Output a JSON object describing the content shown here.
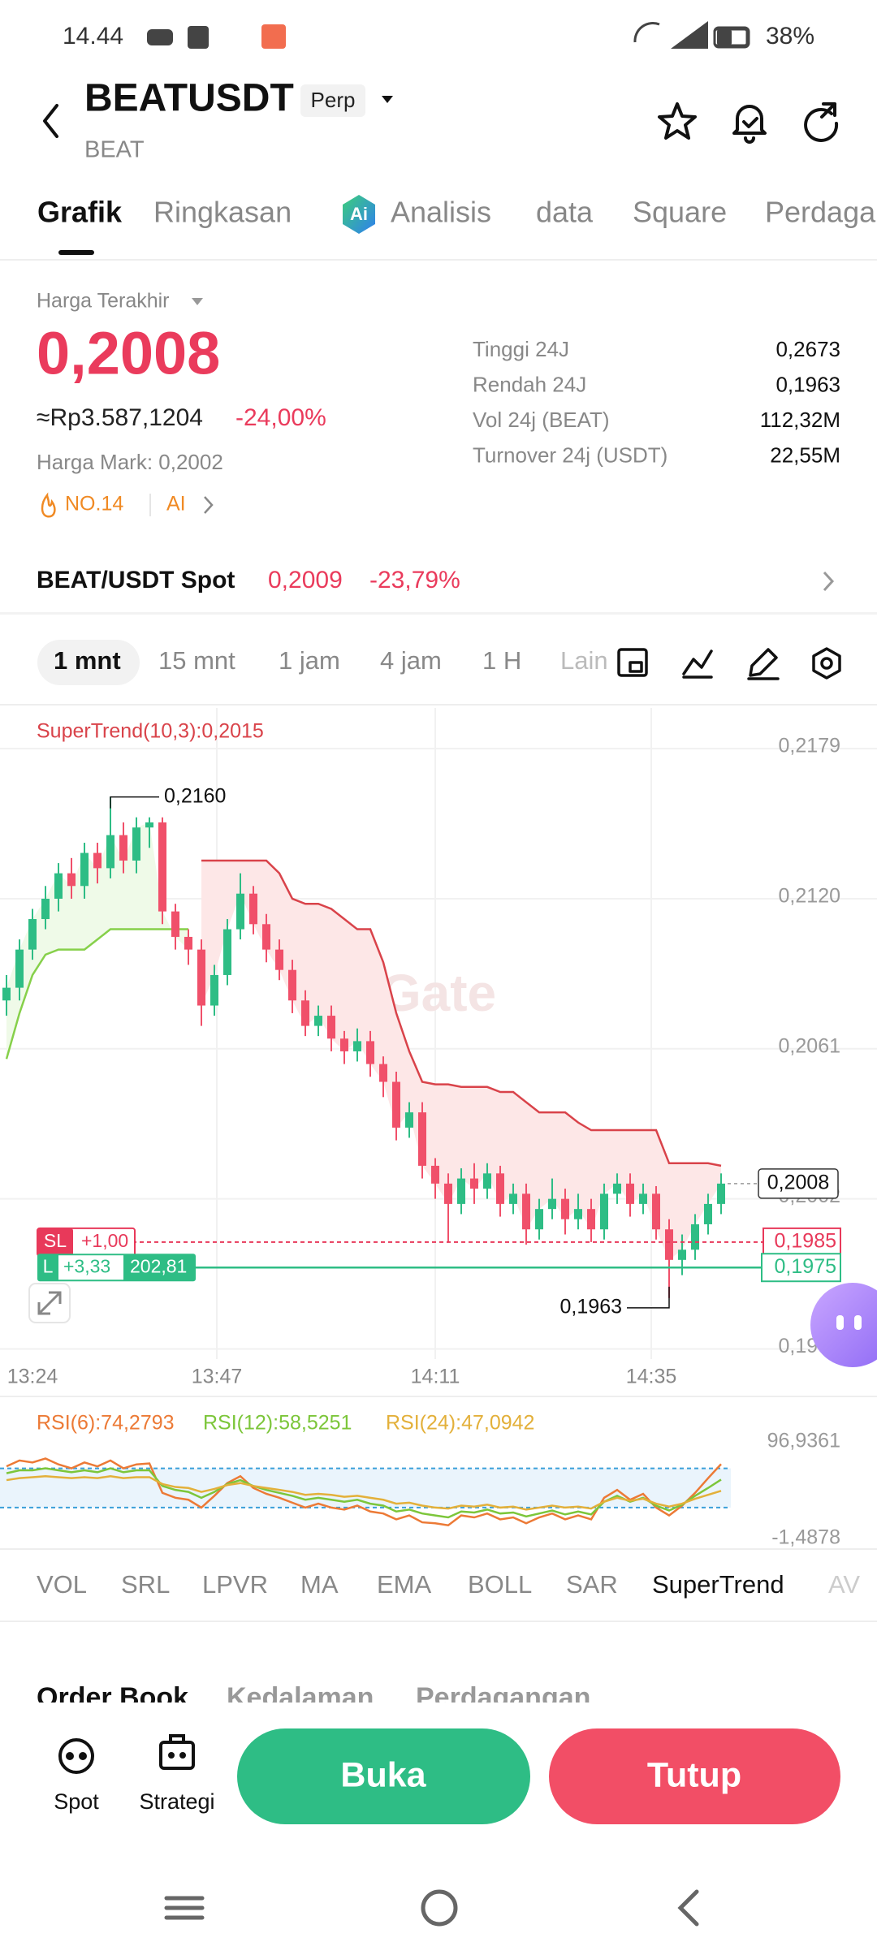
{
  "status_bar": {
    "time": "14.44",
    "battery": "38%"
  },
  "header": {
    "symbol": "BEATUSDT",
    "badge": "Perp",
    "base": "BEAT"
  },
  "tabs": [
    "Grafik",
    "Ringkasan",
    "Analisis",
    "data",
    "Square",
    "Perdaga"
  ],
  "ticker": {
    "label": "Harga Terakhir",
    "price": "0,2008",
    "idr": "≈Rp3.587,1204",
    "change": "-24,00%",
    "mark": "Harga Mark: 0,2002",
    "rank": "NO.14",
    "ai": "AI",
    "stats": [
      {
        "label": "Tinggi 24J",
        "value": "0,2673"
      },
      {
        "label": "Rendah 24J",
        "value": "0,1963"
      },
      {
        "label": "Vol 24j (BEAT)",
        "value": "112,32M"
      },
      {
        "label": "Turnover 24j (USDT)",
        "value": "22,55M"
      }
    ]
  },
  "spot": {
    "pair": "BEAT/USDT Spot",
    "price": "0,2009",
    "change": "-23,79%"
  },
  "intervals": [
    "1 mnt",
    "15 mnt",
    "1 jam",
    "4 jam",
    "1 H",
    "Lain"
  ],
  "chart": {
    "type": "candlestick",
    "indicator_label": "SuperTrend(10,3):0,2015",
    "watermark": "Gate",
    "up_color": "#2ebd85",
    "down_color": "#f0506a",
    "open": [
      0.208,
      0.2085,
      0.21,
      0.2112,
      0.212,
      0.213,
      0.2125,
      0.2138,
      0.2132,
      0.2145,
      0.2135,
      0.2148,
      0.215,
      0.2115,
      0.2105,
      0.21,
      0.2078,
      0.209,
      0.2108,
      0.2122,
      0.211,
      0.21,
      0.2092,
      0.208,
      0.207,
      0.2074,
      0.2065,
      0.206,
      0.2064,
      0.2055,
      0.2048,
      0.203,
      0.2036,
      0.2015,
      0.2008,
      0.2,
      0.201,
      0.2006,
      0.2012,
      0.2,
      0.2004,
      0.199,
      0.1998,
      0.2002,
      0.1994,
      0.1998,
      0.199,
      0.2004,
      0.2008,
      0.2,
      0.2004,
      0.199,
      0.1978,
      0.1982,
      0.1992,
      0.2
    ],
    "high": [
      0.209,
      0.2104,
      0.2116,
      0.2125,
      0.2134,
      0.2136,
      0.2142,
      0.2142,
      0.216,
      0.215,
      0.2152,
      0.2152,
      0.2152,
      0.2118,
      0.2108,
      0.2104,
      0.2094,
      0.2112,
      0.213,
      0.2125,
      0.2114,
      0.2104,
      0.2096,
      0.2084,
      0.2078,
      0.2078,
      0.2068,
      0.2069,
      0.2068,
      0.2058,
      0.2052,
      0.204,
      0.204,
      0.2018,
      0.2012,
      0.2014,
      0.2016,
      0.2016,
      0.2015,
      0.2008,
      0.2008,
      0.2002,
      0.201,
      0.2006,
      0.2004,
      0.2002,
      0.2008,
      0.2012,
      0.2012,
      0.2008,
      0.2007,
      0.1994,
      0.1988,
      0.1996,
      0.2004,
      0.2012
    ],
    "low": [
      0.2074,
      0.208,
      0.2096,
      0.2108,
      0.2115,
      0.212,
      0.212,
      0.2126,
      0.2128,
      0.213,
      0.213,
      0.214,
      0.211,
      0.21,
      0.2094,
      0.207,
      0.2074,
      0.2086,
      0.2104,
      0.2106,
      0.2095,
      0.2088,
      0.2075,
      0.2066,
      0.2066,
      0.206,
      0.2055,
      0.2056,
      0.205,
      0.2042,
      0.2025,
      0.2026,
      0.201,
      0.2002,
      0.1985,
      0.1996,
      0.2,
      0.2002,
      0.1995,
      0.1996,
      0.1984,
      0.1986,
      0.1994,
      0.1988,
      0.199,
      0.1985,
      0.1986,
      0.2,
      0.1995,
      0.1996,
      0.1986,
      0.1963,
      0.1972,
      0.1978,
      0.1988,
      0.1996
    ],
    "close": [
      0.2085,
      0.21,
      0.2112,
      0.212,
      0.213,
      0.2125,
      0.2138,
      0.2132,
      0.2145,
      0.2135,
      0.2148,
      0.215,
      0.2115,
      0.2105,
      0.21,
      0.2078,
      0.209,
      0.2108,
      0.2122,
      0.211,
      0.21,
      0.2092,
      0.208,
      0.207,
      0.2074,
      0.2065,
      0.206,
      0.2064,
      0.2055,
      0.2048,
      0.203,
      0.2036,
      0.2015,
      0.2008,
      0.2,
      0.201,
      0.2006,
      0.2012,
      0.2,
      0.2004,
      0.199,
      0.1998,
      0.2002,
      0.1994,
      0.1998,
      0.199,
      0.2004,
      0.2008,
      0.2,
      0.2004,
      0.199,
      0.1978,
      0.1982,
      0.1992,
      0.2,
      0.2008
    ],
    "series": [
      {
        "color": "#86d04a",
        "fill": "#effae8",
        "values": [
          0.2057,
          0.2075,
          0.209,
          0.2098,
          0.21,
          0.21,
          0.21,
          0.2104,
          0.2108,
          0.2108,
          0.2108,
          0.2108,
          0.2108,
          0.2108,
          0.2108,
          null,
          null,
          null,
          null,
          null,
          null,
          null,
          null,
          null,
          null,
          null,
          null,
          null,
          null,
          null,
          null,
          null,
          null,
          null,
          null,
          null,
          null,
          null,
          null,
          null,
          null,
          null,
          null,
          null,
          null,
          null,
          null,
          null,
          null,
          null,
          null,
          null,
          null,
          null,
          null,
          null
        ]
      },
      {
        "color": "#d9434a",
        "fill": "#fde7e7",
        "values": [
          null,
          null,
          null,
          null,
          null,
          null,
          null,
          null,
          null,
          null,
          null,
          null,
          null,
          null,
          null,
          0.2135,
          0.2135,
          0.2135,
          0.2135,
          0.2135,
          0.2135,
          0.213,
          0.212,
          0.2118,
          0.2118,
          0.2116,
          0.2112,
          0.2108,
          0.2108,
          0.2095,
          0.2075,
          0.206,
          0.2048,
          0.2047,
          0.2047,
          0.2046,
          0.2046,
          0.2046,
          0.2044,
          0.2044,
          0.204,
          0.2036,
          0.2036,
          0.2036,
          0.2032,
          0.2029,
          0.2029,
          0.2029,
          0.2029,
          0.2029,
          0.2029,
          0.2016,
          0.2016,
          0.2016,
          0.2016,
          0.2015
        ]
      }
    ],
    "ylim": [
      0.1939,
      0.2195
    ],
    "yticks": [
      {
        "value": 0.2179,
        "label": "0,2179"
      },
      {
        "value": 0.212,
        "label": "0,2120"
      },
      {
        "value": 0.2061,
        "label": "0,2061"
      },
      {
        "value": 0.2002,
        "label": "0,2002"
      },
      {
        "value": 0.1943,
        "label": "0,1943"
      }
    ],
    "x_labels": [
      "13:24",
      "13:47",
      "14:11",
      "14:35"
    ],
    "grid": true,
    "max": {
      "value": 0.216,
      "label": "0,2160"
    },
    "min": {
      "value": 0.1963,
      "label": "0,1963"
    },
    "last": {
      "value": 0.2008,
      "label": "0,2008"
    },
    "positions": {
      "sl": {
        "tag": "SL",
        "pnl": "+1,00",
        "color": "#e8395a",
        "price": {
          "value": 0.1985,
          "label": "0,1985"
        }
      },
      "long": {
        "tag": "L",
        "pnl": "+3,33",
        "size": "202,81",
        "color": "#2ebd85",
        "price": {
          "value": 0.1975,
          "label": "0,1975"
        }
      }
    }
  },
  "rsi": {
    "type": "line",
    "ylim": [
      -1.4878,
      96.9361
    ],
    "yticks": [
      {
        "value": 96.9361,
        "label": "96,9361"
      },
      {
        "value": -1.4878,
        "label": "-1,4878"
      }
    ],
    "bands": [
      30,
      70
    ],
    "series": [
      {
        "name": "RSI(6):74,2793",
        "color": "#ec7a36",
        "values": [
          72,
          78,
          76,
          80,
          74,
          70,
          76,
          72,
          78,
          70,
          74,
          75,
          45,
          40,
          38,
          30,
          42,
          55,
          62,
          50,
          44,
          40,
          35,
          30,
          34,
          30,
          28,
          32,
          26,
          24,
          18,
          22,
          15,
          14,
          12,
          22,
          20,
          24,
          18,
          20,
          14,
          20,
          24,
          18,
          22,
          18,
          40,
          48,
          38,
          44,
          30,
          22,
          32,
          45,
          60,
          74.2793
        ]
      },
      {
        "name": "RSI(12):58,5251",
        "color": "#7cc63a",
        "values": [
          65,
          68,
          68,
          70,
          68,
          66,
          68,
          66,
          70,
          66,
          68,
          68,
          52,
          48,
          46,
          40,
          46,
          54,
          58,
          52,
          48,
          45,
          42,
          38,
          40,
          38,
          36,
          38,
          34,
          32,
          26,
          28,
          24,
          22,
          20,
          26,
          25,
          28,
          24,
          25,
          21,
          24,
          27,
          23,
          26,
          23,
          36,
          42,
          36,
          40,
          32,
          27,
          33,
          42,
          50,
          58.5251
        ]
      },
      {
        "name": "RSI(24):47,0942",
        "color": "#e3b03a",
        "values": [
          58,
          60,
          61,
          62,
          61,
          60,
          61,
          60,
          62,
          60,
          61,
          61,
          54,
          51,
          50,
          46,
          49,
          53,
          55,
          52,
          50,
          48,
          46,
          43,
          44,
          43,
          41,
          42,
          40,
          38,
          34,
          35,
          32,
          30,
          29,
          32,
          31,
          33,
          30,
          31,
          28,
          30,
          32,
          30,
          31,
          29,
          36,
          40,
          37,
          39,
          34,
          31,
          34,
          39,
          43,
          47.0942
        ]
      }
    ]
  },
  "indicators": [
    "VOL",
    "SRL",
    "LPVR",
    "MA",
    "EMA",
    "BOLL",
    "SAR",
    "SuperTrend",
    "AV"
  ],
  "order_book_tabs": [
    "Order Book",
    "Kedalaman",
    "Perdagangan"
  ],
  "bottom_bar": {
    "spot": "Spot",
    "strategy": "Strategi",
    "open": "Buka",
    "close": "Tutup"
  }
}
